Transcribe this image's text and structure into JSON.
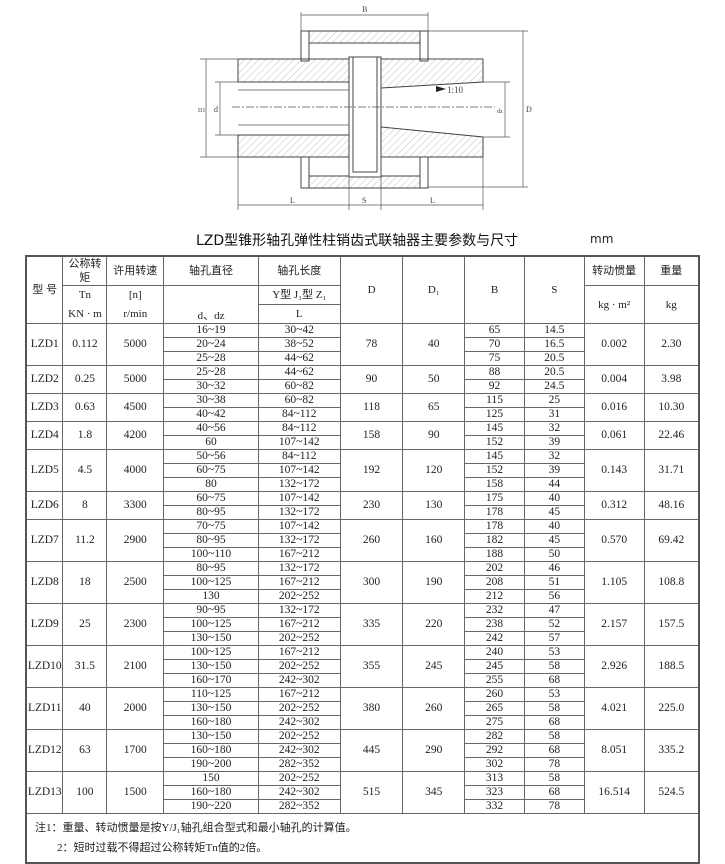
{
  "title": "LZD型锥形轴孔弹性柱销齿式联轴器主要参数与尺寸",
  "unit": "mm",
  "drawing": {
    "labels": {
      "B": "B",
      "L": "L",
      "S": "S",
      "D": "D",
      "D1": "D1",
      "d": "d",
      "dz": "dz",
      "taper": "1:10"
    }
  },
  "table": {
    "headers": {
      "model": "型  号",
      "torque": [
        "公称转矩",
        "Tn",
        "KN · m"
      ],
      "speed": [
        "许用转速",
        "[n]",
        "r/min"
      ],
      "bore": [
        "轴孔直径",
        "d、dz"
      ],
      "length": [
        "轴孔长度",
        "Y型 J₁型 Z₁",
        "L"
      ],
      "D": "D",
      "D1": "D₁",
      "B": "B",
      "S": "S",
      "inertia": [
        "转动惯量",
        "kg · m²"
      ],
      "weight": [
        "重量",
        "kg"
      ]
    },
    "rows": [
      {
        "model": "LZD1",
        "tn": "0.112",
        "n": "5000",
        "d": [
          "16~19",
          "20~24",
          "25~28"
        ],
        "L": [
          "30~42",
          "38~52",
          "44~62"
        ],
        "D": "78",
        "D1": "40",
        "B": [
          "65",
          "70",
          "75"
        ],
        "S": [
          "14.5",
          "16.5",
          "20.5"
        ],
        "I": "0.002",
        "m": "2.30"
      },
      {
        "model": "LZD2",
        "tn": "0.25",
        "n": "5000",
        "d": [
          "25~28",
          "30~32"
        ],
        "L": [
          "44~62",
          "60~82"
        ],
        "D": "90",
        "D1": "50",
        "B": [
          "88",
          "92"
        ],
        "S": [
          "20.5",
          "24.5"
        ],
        "I": "0.004",
        "m": "3.98"
      },
      {
        "model": "LZD3",
        "tn": "0.63",
        "n": "4500",
        "d": [
          "30~38",
          "40~42"
        ],
        "L": [
          "60~82",
          "84~112"
        ],
        "D": "118",
        "D1": "65",
        "B": [
          "115",
          "125"
        ],
        "S": [
          "25",
          "31"
        ],
        "I": "0.016",
        "m": "10.30"
      },
      {
        "model": "LZD4",
        "tn": "1.8",
        "n": "4200",
        "d": [
          "40~56",
          "60"
        ],
        "L": [
          "84~112",
          "107~142"
        ],
        "D": "158",
        "D1": "90",
        "B": [
          "145",
          "152"
        ],
        "S": [
          "32",
          "39"
        ],
        "I": "0.061",
        "m": "22.46"
      },
      {
        "model": "LZD5",
        "tn": "4.5",
        "n": "4000",
        "d": [
          "50~56",
          "60~75",
          "80"
        ],
        "L": [
          "84~112",
          "107~142",
          "132~172"
        ],
        "D": "192",
        "D1": "120",
        "B": [
          "145",
          "152",
          "158"
        ],
        "S": [
          "32",
          "39",
          "44"
        ],
        "I": "0.143",
        "m": "31.71"
      },
      {
        "model": "LZD6",
        "tn": "8",
        "n": "3300",
        "d": [
          "60~75",
          "80~95"
        ],
        "L": [
          "107~142",
          "132~172"
        ],
        "D": "230",
        "D1": "130",
        "B": [
          "175",
          "178"
        ],
        "S": [
          "40",
          "45"
        ],
        "I": "0.312",
        "m": "48.16"
      },
      {
        "model": "LZD7",
        "tn": "11.2",
        "n": "2900",
        "d": [
          "70~75",
          "80~95",
          "100~110"
        ],
        "L": [
          "107~142",
          "132~172",
          "167~212"
        ],
        "D": "260",
        "D1": "160",
        "B": [
          "178",
          "182",
          "188"
        ],
        "S": [
          "40",
          "45",
          "50"
        ],
        "I": "0.570",
        "m": "69.42"
      },
      {
        "model": "LZD8",
        "tn": "18",
        "n": "2500",
        "d": [
          "80~95",
          "100~125",
          "130"
        ],
        "L": [
          "132~172",
          "167~212",
          "202~252"
        ],
        "D": "300",
        "D1": "190",
        "B": [
          "202",
          "208",
          "212"
        ],
        "S": [
          "46",
          "51",
          "56"
        ],
        "I": "1.105",
        "m": "108.8"
      },
      {
        "model": "LZD9",
        "tn": "25",
        "n": "2300",
        "d": [
          "90~95",
          "100~125",
          "130~150"
        ],
        "L": [
          "132~172",
          "167~212",
          "202~252"
        ],
        "D": "335",
        "D1": "220",
        "B": [
          "232",
          "238",
          "242"
        ],
        "S": [
          "47",
          "52",
          "57"
        ],
        "I": "2.157",
        "m": "157.5"
      },
      {
        "model": "LZD10",
        "tn": "31.5",
        "n": "2100",
        "d": [
          "100~125",
          "130~150",
          "160~170"
        ],
        "L": [
          "167~212",
          "202~252",
          "242~302"
        ],
        "D": "355",
        "D1": "245",
        "B": [
          "240",
          "245",
          "255"
        ],
        "S": [
          "53",
          "58",
          "68"
        ],
        "I": "2.926",
        "m": "188.5"
      },
      {
        "model": "LZD11",
        "tn": "40",
        "n": "2000",
        "d": [
          "110~125",
          "130~150",
          "160~180"
        ],
        "L": [
          "167~212",
          "202~252",
          "242~302"
        ],
        "D": "380",
        "D1": "260",
        "B": [
          "260",
          "265",
          "275"
        ],
        "S": [
          "53",
          "58",
          "68"
        ],
        "I": "4.021",
        "m": "225.0"
      },
      {
        "model": "LZD12",
        "tn": "63",
        "n": "1700",
        "d": [
          "130~150",
          "160~180",
          "190~200"
        ],
        "L": [
          "202~252",
          "242~302",
          "282~352"
        ],
        "D": "445",
        "D1": "290",
        "B": [
          "282",
          "292",
          "302"
        ],
        "S": [
          "58",
          "68",
          "78"
        ],
        "I": "8.051",
        "m": "335.2"
      },
      {
        "model": "LZD13",
        "tn": "100",
        "n": "1500",
        "d": [
          "150",
          "160~180",
          "190~220"
        ],
        "L": [
          "202~252",
          "242~302",
          "282~352"
        ],
        "D": "515",
        "D1": "345",
        "B": [
          "313",
          "323",
          "332"
        ],
        "S": [
          "58",
          "68",
          "78"
        ],
        "I": "16.514",
        "m": "524.5"
      }
    ],
    "notes": [
      "注1：重量、转动惯量是按Y/J₁轴孔组合型式和最小轴孔的计算值。",
      "2：短时过载不得超过公称转矩Tn值的2倍。"
    ]
  }
}
